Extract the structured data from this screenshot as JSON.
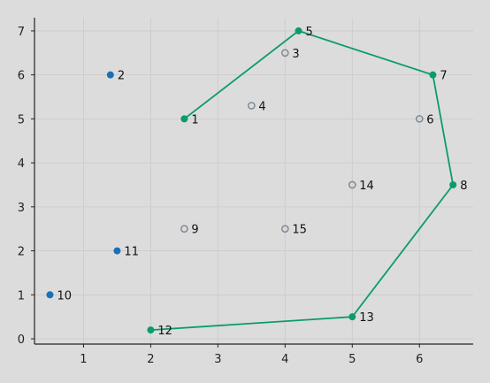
{
  "chart_data": {
    "type": "scatter",
    "title": "",
    "xlabel": "",
    "ylabel": "",
    "xlim": [
      0.27,
      6.8
    ],
    "ylim": [
      -0.12,
      7.3
    ],
    "grid": true,
    "x_ticks": [
      1,
      2,
      3,
      4,
      5,
      6
    ],
    "y_ticks": [
      0,
      1,
      2,
      3,
      4,
      5,
      6,
      7
    ],
    "colors": {
      "path": "#0a9b6e",
      "filled_blue": "#1a6fb5",
      "hollow": "#7a8590",
      "background": "#dcdcdc"
    },
    "points": [
      {
        "id": "1",
        "x": 2.5,
        "y": 5.0,
        "style": "path"
      },
      {
        "id": "2",
        "x": 1.4,
        "y": 6.0,
        "style": "filled_blue"
      },
      {
        "id": "3",
        "x": 4.0,
        "y": 6.5,
        "style": "hollow"
      },
      {
        "id": "4",
        "x": 3.5,
        "y": 5.3,
        "style": "hollow"
      },
      {
        "id": "5",
        "x": 4.2,
        "y": 7.0,
        "style": "path"
      },
      {
        "id": "6",
        "x": 6.0,
        "y": 5.0,
        "style": "hollow"
      },
      {
        "id": "7",
        "x": 6.2,
        "y": 6.0,
        "style": "path"
      },
      {
        "id": "8",
        "x": 6.5,
        "y": 3.5,
        "style": "path"
      },
      {
        "id": "9",
        "x": 2.5,
        "y": 2.5,
        "style": "hollow"
      },
      {
        "id": "10",
        "x": 0.5,
        "y": 1.0,
        "style": "filled_blue"
      },
      {
        "id": "11",
        "x": 1.5,
        "y": 2.0,
        "style": "filled_blue"
      },
      {
        "id": "12",
        "x": 2.0,
        "y": 0.2,
        "style": "path"
      },
      {
        "id": "13",
        "x": 5.0,
        "y": 0.5,
        "style": "path"
      },
      {
        "id": "14",
        "x": 5.0,
        "y": 3.5,
        "style": "hollow"
      },
      {
        "id": "15",
        "x": 4.0,
        "y": 2.5,
        "style": "hollow"
      }
    ],
    "path_order": [
      "1",
      "5",
      "7",
      "8",
      "13",
      "12"
    ]
  }
}
